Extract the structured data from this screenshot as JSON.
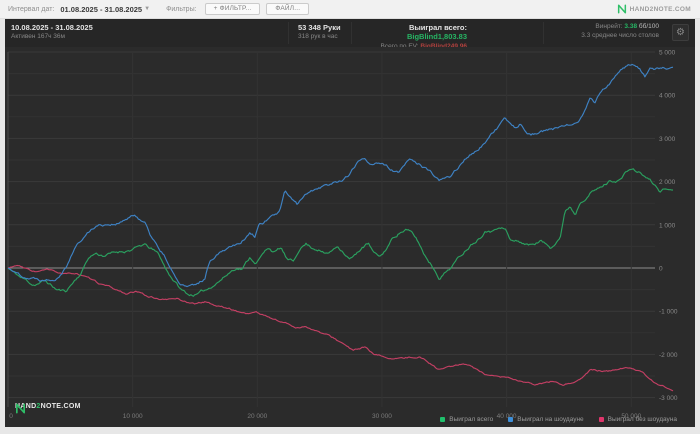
{
  "toolbar": {
    "date_range_label": "Интервал дат:",
    "date_range_value": "01.08.2025 - 31.08.2025",
    "filters_label": "Фильтры:",
    "add_filter_button": "+ ФИЛЬТР...",
    "file_button": "ФАЙЛ...",
    "brand": "HAND2NOTE.COM"
  },
  "stats": {
    "period": "10.08.2025 - 31.08.2025",
    "active_time": "Активен 167ч 36м",
    "hands": "53 348 Руки",
    "hands_per_hour": "318 рук в час",
    "won_total_label": "Выиграл всего:",
    "won_total_value": "BigBlind1,803.83",
    "ev_label": "Всего по EV:",
    "ev_value": "BigBlind249.96",
    "winrate_label": "Винрейт:",
    "winrate_value": "3.38",
    "winrate_unit": "бб/100",
    "avg_tables": "3.3 среднее число столов"
  },
  "watermark": {
    "part1": "HAND",
    "part2": "2",
    "part3": "NOTE.COM"
  },
  "colors": {
    "accent_green": "#26b564",
    "accent_red": "#b0413e",
    "chart_bg": "#2b2b2b"
  },
  "chart_data": {
    "type": "line",
    "x_unit": "hands",
    "x_max": 53348,
    "x_ticks": [
      0,
      10000,
      20000,
      30000,
      40000,
      50000
    ],
    "x_tick_labels": [
      "0",
      "10 000",
      "20 000",
      "30 000",
      "40 000",
      "50 000"
    ],
    "y_ticks": [
      5000,
      4000,
      3000,
      2000,
      1000,
      0,
      -1000,
      -2000,
      -3000
    ],
    "y_tick_labels": [
      "5 000",
      "4 000",
      "3 000",
      "2 000",
      "1 000",
      "0",
      "-1 000",
      "-2 000",
      "-3 000"
    ],
    "ylim": [
      -3200,
      5200
    ],
    "grid": {
      "horizontal_step": 500,
      "vertical_step": 10000
    },
    "legend_position": "bottom-right",
    "series": [
      {
        "name": "Выиграл всего",
        "color": "#2aa05f",
        "dot_color": "#1fc06c",
        "final": 1803.83,
        "jitter": 55,
        "seed": 11,
        "points": [
          [
            0,
            0
          ],
          [
            1000,
            -220
          ],
          [
            2000,
            -380
          ],
          [
            3000,
            -300
          ],
          [
            3900,
            -500
          ],
          [
            4600,
            -550
          ],
          [
            5300,
            -300
          ],
          [
            5900,
            -100
          ],
          [
            6400,
            230
          ],
          [
            7000,
            345
          ],
          [
            7600,
            300
          ],
          [
            8600,
            350
          ],
          [
            9600,
            420
          ],
          [
            10300,
            460
          ],
          [
            10900,
            530
          ],
          [
            11500,
            430
          ],
          [
            12100,
            300
          ],
          [
            12700,
            -50
          ],
          [
            13300,
            -280
          ],
          [
            13900,
            -510
          ],
          [
            14500,
            -620
          ],
          [
            15300,
            -600
          ],
          [
            16000,
            -500
          ],
          [
            16600,
            -350
          ],
          [
            17200,
            -230
          ],
          [
            17800,
            -90
          ],
          [
            18300,
            25
          ],
          [
            18800,
            0
          ],
          [
            19400,
            250
          ],
          [
            19900,
            140
          ],
          [
            20400,
            300
          ],
          [
            20900,
            480
          ],
          [
            21400,
            370
          ],
          [
            21900,
            460
          ],
          [
            22400,
            180
          ],
          [
            22900,
            115
          ],
          [
            23400,
            460
          ],
          [
            23900,
            570
          ],
          [
            24400,
            480
          ],
          [
            24900,
            460
          ],
          [
            25400,
            340
          ],
          [
            25900,
            370
          ],
          [
            26400,
            530
          ],
          [
            26900,
            410
          ],
          [
            27400,
            230
          ],
          [
            27900,
            300
          ],
          [
            28400,
            480
          ],
          [
            28900,
            570
          ],
          [
            29400,
            300
          ],
          [
            29900,
            250
          ],
          [
            30400,
            460
          ],
          [
            30900,
            700
          ],
          [
            31400,
            830
          ],
          [
            31900,
            900
          ],
          [
            32400,
            800
          ],
          [
            32900,
            600
          ],
          [
            33400,
            300
          ],
          [
            33900,
            115
          ],
          [
            34600,
            -200
          ],
          [
            35400,
            0
          ],
          [
            36200,
            250
          ],
          [
            37000,
            530
          ],
          [
            37900,
            760
          ],
          [
            38300,
            940
          ],
          [
            38700,
            870
          ],
          [
            39100,
            990
          ],
          [
            39900,
            920
          ],
          [
            40300,
            640
          ],
          [
            41100,
            600
          ],
          [
            41900,
            530
          ],
          [
            42700,
            640
          ],
          [
            43500,
            480
          ],
          [
            44300,
            760
          ],
          [
            44700,
            1330
          ],
          [
            45100,
            1445
          ],
          [
            45500,
            1260
          ],
          [
            45900,
            1560
          ],
          [
            46700,
            1790
          ],
          [
            47500,
            1860
          ],
          [
            48300,
            2020
          ],
          [
            49100,
            2060
          ],
          [
            49900,
            2300
          ],
          [
            50700,
            2200
          ],
          [
            51500,
            2020
          ],
          [
            51900,
            1900
          ],
          [
            52300,
            1790
          ],
          [
            52700,
            1835
          ],
          [
            53348,
            1803.83
          ]
        ]
      },
      {
        "name": "Выиграл на шоудауне",
        "color": "#3e82c4",
        "dot_color": "#3e8fd9",
        "final": 4649.0,
        "jitter": 55,
        "seed": 22,
        "points": [
          [
            0,
            0
          ],
          [
            1000,
            -150
          ],
          [
            2600,
            -250
          ],
          [
            3800,
            -200
          ],
          [
            4600,
            70
          ],
          [
            5400,
            530
          ],
          [
            6200,
            760
          ],
          [
            7000,
            990
          ],
          [
            7800,
            1030
          ],
          [
            9000,
            1060
          ],
          [
            9800,
            1170
          ],
          [
            10200,
            1200
          ],
          [
            11000,
            1060
          ],
          [
            11400,
            800
          ],
          [
            11800,
            640
          ],
          [
            12200,
            370
          ],
          [
            12600,
            230
          ],
          [
            13000,
            0
          ],
          [
            13400,
            -230
          ],
          [
            13800,
            -390
          ],
          [
            14400,
            -450
          ],
          [
            15000,
            -440
          ],
          [
            15800,
            -250
          ],
          [
            16200,
            180
          ],
          [
            17000,
            410
          ],
          [
            17800,
            530
          ],
          [
            18600,
            640
          ],
          [
            19400,
            830
          ],
          [
            19800,
            760
          ],
          [
            20200,
            1030
          ],
          [
            21000,
            1150
          ],
          [
            21800,
            1260
          ],
          [
            22200,
            1720
          ],
          [
            23200,
            1445
          ],
          [
            24200,
            1790
          ],
          [
            25000,
            1900
          ],
          [
            25800,
            1950
          ],
          [
            26600,
            2020
          ],
          [
            27400,
            2180
          ],
          [
            28200,
            2480
          ],
          [
            28600,
            2550
          ],
          [
            29000,
            2430
          ],
          [
            29800,
            2480
          ],
          [
            30600,
            2290
          ],
          [
            31400,
            2200
          ],
          [
            32200,
            2480
          ],
          [
            33000,
            2400
          ],
          [
            33900,
            2200
          ],
          [
            34600,
            2020
          ],
          [
            35400,
            2060
          ],
          [
            36200,
            2360
          ],
          [
            37000,
            2600
          ],
          [
            37900,
            2820
          ],
          [
            38300,
            2940
          ],
          [
            39100,
            3170
          ],
          [
            39900,
            3390
          ],
          [
            40700,
            3230
          ],
          [
            41100,
            3350
          ],
          [
            41900,
            3120
          ],
          [
            42700,
            3170
          ],
          [
            43500,
            3210
          ],
          [
            44300,
            3230
          ],
          [
            45100,
            3280
          ],
          [
            45900,
            3500
          ],
          [
            46700,
            3960
          ],
          [
            47100,
            3850
          ],
          [
            47500,
            4080
          ],
          [
            48300,
            4310
          ],
          [
            49100,
            4540
          ],
          [
            49900,
            4700
          ],
          [
            50300,
            4720
          ],
          [
            50700,
            4580
          ],
          [
            51100,
            4420
          ],
          [
            51500,
            4580
          ],
          [
            51900,
            4540
          ],
          [
            52700,
            4600
          ],
          [
            53348,
            4649
          ]
        ]
      },
      {
        "name": "Выиграл без шоудауна",
        "color": "#c23f63",
        "dot_color": "#e0356b",
        "final": -2845.17,
        "jitter": 30,
        "seed": 33,
        "points": [
          [
            0,
            0
          ],
          [
            700,
            60
          ],
          [
            1500,
            -40
          ],
          [
            2300,
            -90
          ],
          [
            3100,
            -50
          ],
          [
            3900,
            -110
          ],
          [
            4700,
            -160
          ],
          [
            5500,
            -120
          ],
          [
            6300,
            -230
          ],
          [
            7100,
            -350
          ],
          [
            7900,
            -430
          ],
          [
            8700,
            -520
          ],
          [
            9500,
            -600
          ],
          [
            10300,
            -560
          ],
          [
            11100,
            -650
          ],
          [
            11900,
            -700
          ],
          [
            12700,
            -740
          ],
          [
            13500,
            -700
          ],
          [
            14300,
            -780
          ],
          [
            15100,
            -820
          ],
          [
            15900,
            -780
          ],
          [
            16700,
            -870
          ],
          [
            17500,
            -920
          ],
          [
            18300,
            -990
          ],
          [
            19100,
            -1050
          ],
          [
            19900,
            -1020
          ],
          [
            20700,
            -1120
          ],
          [
            21500,
            -1200
          ],
          [
            22300,
            -1280
          ],
          [
            23100,
            -1380
          ],
          [
            23900,
            -1340
          ],
          [
            24700,
            -1450
          ],
          [
            25500,
            -1550
          ],
          [
            26300,
            -1650
          ],
          [
            27100,
            -1800
          ],
          [
            27700,
            -1930
          ],
          [
            28600,
            -1835
          ],
          [
            29400,
            -2040
          ],
          [
            31400,
            -2110
          ],
          [
            33000,
            -2040
          ],
          [
            34600,
            -2340
          ],
          [
            35400,
            -2270
          ],
          [
            37000,
            -2225
          ],
          [
            37900,
            -2410
          ],
          [
            38700,
            -2525
          ],
          [
            40300,
            -2570
          ],
          [
            42300,
            -2730
          ],
          [
            43500,
            -2640
          ],
          [
            44500,
            -2730
          ],
          [
            45900,
            -2570
          ],
          [
            46700,
            -2385
          ],
          [
            48300,
            -2385
          ],
          [
            49900,
            -2295
          ],
          [
            50700,
            -2410
          ],
          [
            51500,
            -2570
          ],
          [
            52300,
            -2755
          ],
          [
            53000,
            -2800
          ],
          [
            53348,
            -2845.17
          ]
        ]
      }
    ]
  }
}
